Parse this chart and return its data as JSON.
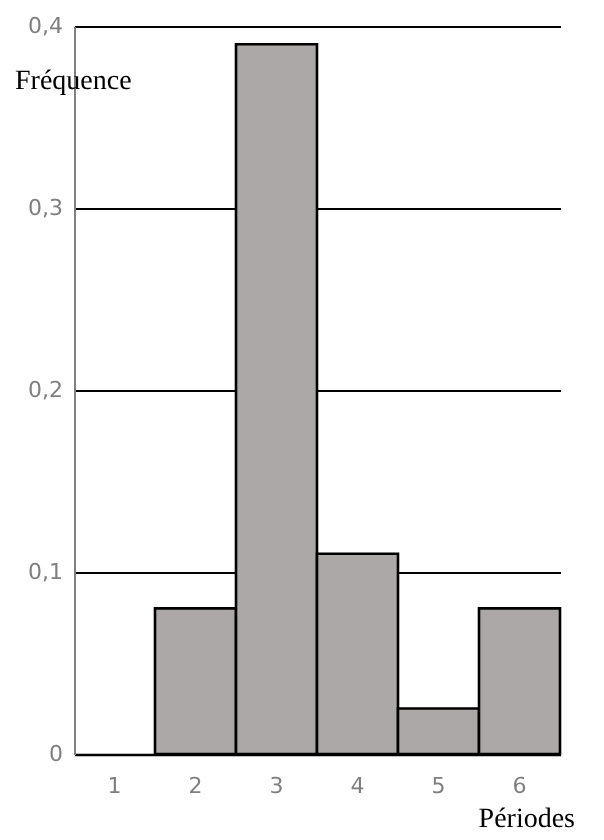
{
  "chart_data": {
    "type": "bar",
    "xlabel": "Périodes",
    "ylabel": "Fréquence",
    "categories": [
      "1",
      "2",
      "3",
      "4",
      "5",
      "6"
    ],
    "values": [
      null,
      0.08,
      0.39,
      0.11,
      0.025,
      0.08
    ],
    "color": "#aca8a7",
    "ylim": [
      0,
      0.4
    ],
    "yticks": [
      0,
      {
        "value": 0.1,
        "label": "0,1"
      },
      {
        "value": 0.2,
        "label": "0,2"
      },
      {
        "value": 0.3,
        "label": "0,3"
      },
      {
        "value": 0.4,
        "label": "0,4"
      }
    ],
    "grid": "y"
  }
}
